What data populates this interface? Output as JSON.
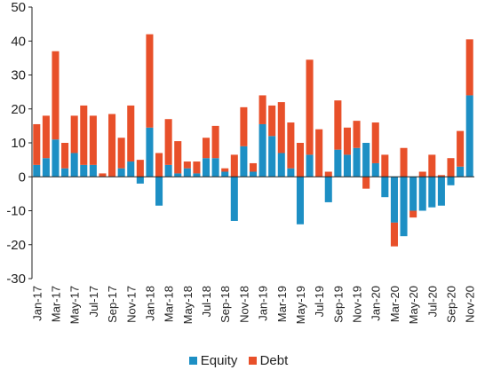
{
  "chart_data": {
    "type": "bar",
    "stacked": true,
    "categories": [
      "Jan-17",
      "Feb-17",
      "Mar-17",
      "Apr-17",
      "May-17",
      "Jun-17",
      "Jul-17",
      "Aug-17",
      "Sep-17",
      "Oct-17",
      "Nov-17",
      "Dec-17",
      "Jan-18",
      "Feb-18",
      "Mar-18",
      "Apr-18",
      "May-18",
      "Jun-18",
      "Jul-18",
      "Aug-18",
      "Sep-18",
      "Oct-18",
      "Nov-18",
      "Dec-18",
      "Jan-19",
      "Feb-19",
      "Mar-19",
      "Apr-19",
      "May-19",
      "Jun-19",
      "Jul-19",
      "Aug-19",
      "Sep-19",
      "Oct-19",
      "Nov-19",
      "Dec-19",
      "Jan-20",
      "Feb-20",
      "Mar-20",
      "Apr-20",
      "May-20",
      "Jun-20",
      "Jul-20",
      "Aug-20",
      "Sep-20",
      "Oct-20",
      "Nov-20"
    ],
    "shown_tick_labels": [
      "Jan-17",
      "Mar-17",
      "May-17",
      "Jul-17",
      "Sep-17",
      "Nov-17",
      "Jan-18",
      "Mar-18",
      "May-18",
      "Jul-18",
      "Sep-18",
      "Nov-18",
      "Jan-19",
      "Mar-19",
      "May-19",
      "Jul-19",
      "Sep-19",
      "Nov-19",
      "Jan-20",
      "Mar-20",
      "May-20",
      "Jul-20",
      "Sep-20",
      "Nov-20"
    ],
    "series": [
      {
        "name": "Equity",
        "color": "#1d8fc4",
        "values": [
          3.5,
          5.5,
          11.0,
          2.5,
          7.0,
          3.5,
          3.5,
          0.0,
          0.0,
          2.5,
          4.5,
          -2.0,
          14.5,
          -8.5,
          3.5,
          1.0,
          2.5,
          1.0,
          5.5,
          5.5,
          1.5,
          -13.0,
          9.0,
          1.5,
          15.5,
          12.0,
          7.0,
          2.5,
          -14.0,
          6.5,
          0.0,
          -7.5,
          8.0,
          6.5,
          8.5,
          10.0,
          4.0,
          -6.0,
          -13.5,
          -17.5,
          -10.0,
          -10.0,
          -9.0,
          -8.5,
          -2.5,
          3.0,
          24.0
        ]
      },
      {
        "name": "Debt",
        "color": "#e8502a",
        "values": [
          12.0,
          12.5,
          26.0,
          7.5,
          11.0,
          17.5,
          14.5,
          1.0,
          18.5,
          9.0,
          16.5,
          5.0,
          27.5,
          7.0,
          13.5,
          9.5,
          2.0,
          3.5,
          6.0,
          9.5,
          1.0,
          6.5,
          11.5,
          2.5,
          8.5,
          9.0,
          15.0,
          13.5,
          10.0,
          28.0,
          14.0,
          1.5,
          14.5,
          8.0,
          8.0,
          -3.5,
          12.0,
          6.5,
          -7.0,
          8.5,
          -2.0,
          1.5,
          6.5,
          0.5,
          5.5,
          10.5,
          16.5
        ]
      }
    ],
    "y_ticks": [
      -30,
      -20,
      -10,
      0,
      10,
      20,
      30,
      40,
      50
    ],
    "ylim": [
      -30,
      50
    ],
    "grid": false,
    "legend_position": "bottom"
  }
}
